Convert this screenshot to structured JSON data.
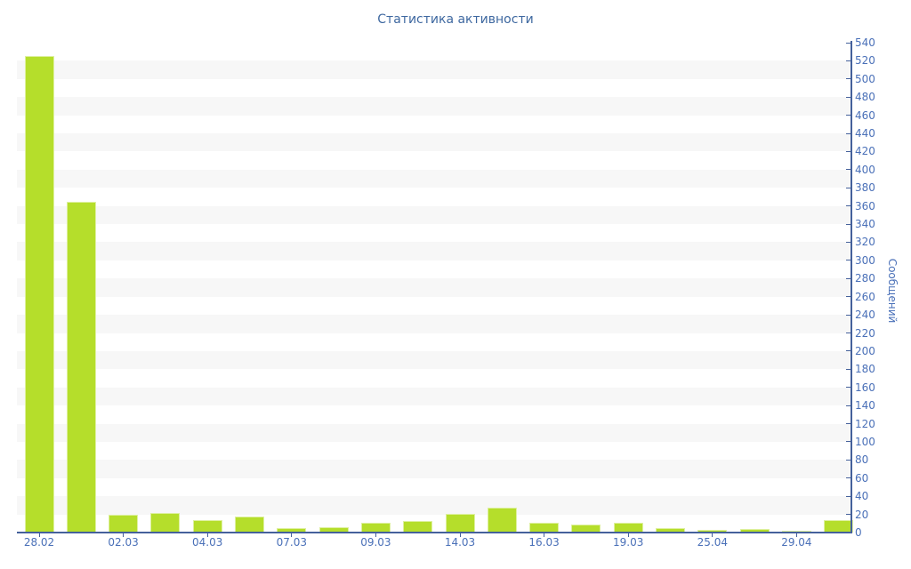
{
  "title": "Статистика активности",
  "chart_data": {
    "type": "bar",
    "title": "Статистика активности",
    "xlabel": "",
    "ylabel": "Сообщений",
    "ylim": [
      0,
      540
    ],
    "ytick_step": 20,
    "grid": "alternating-horizontal-bands",
    "legend": "none",
    "categories": [
      "28.02",
      "",
      "02.03",
      "",
      "04.03",
      "",
      "07.03",
      "",
      "09.03",
      "",
      "14.03",
      "",
      "16.03",
      "",
      "19.03",
      "",
      "25.04",
      "",
      "29.04",
      ""
    ],
    "x_tick_labels": [
      "28.02",
      "02.03",
      "04.03",
      "07.03",
      "09.03",
      "14.03",
      "16.03",
      "19.03",
      "25.04",
      "29.04"
    ],
    "values": [
      525,
      365,
      20,
      22,
      14,
      18,
      5,
      6,
      11,
      13,
      21,
      27,
      11,
      9,
      11,
      5,
      3,
      4,
      2,
      14
    ],
    "colors": {
      "bar": "#b5de2b",
      "axis": "#45619b",
      "tick_label": "#4a70b8",
      "title": "#3e68a0",
      "band": "#f7f7f7",
      "background": "#ffffff"
    }
  }
}
